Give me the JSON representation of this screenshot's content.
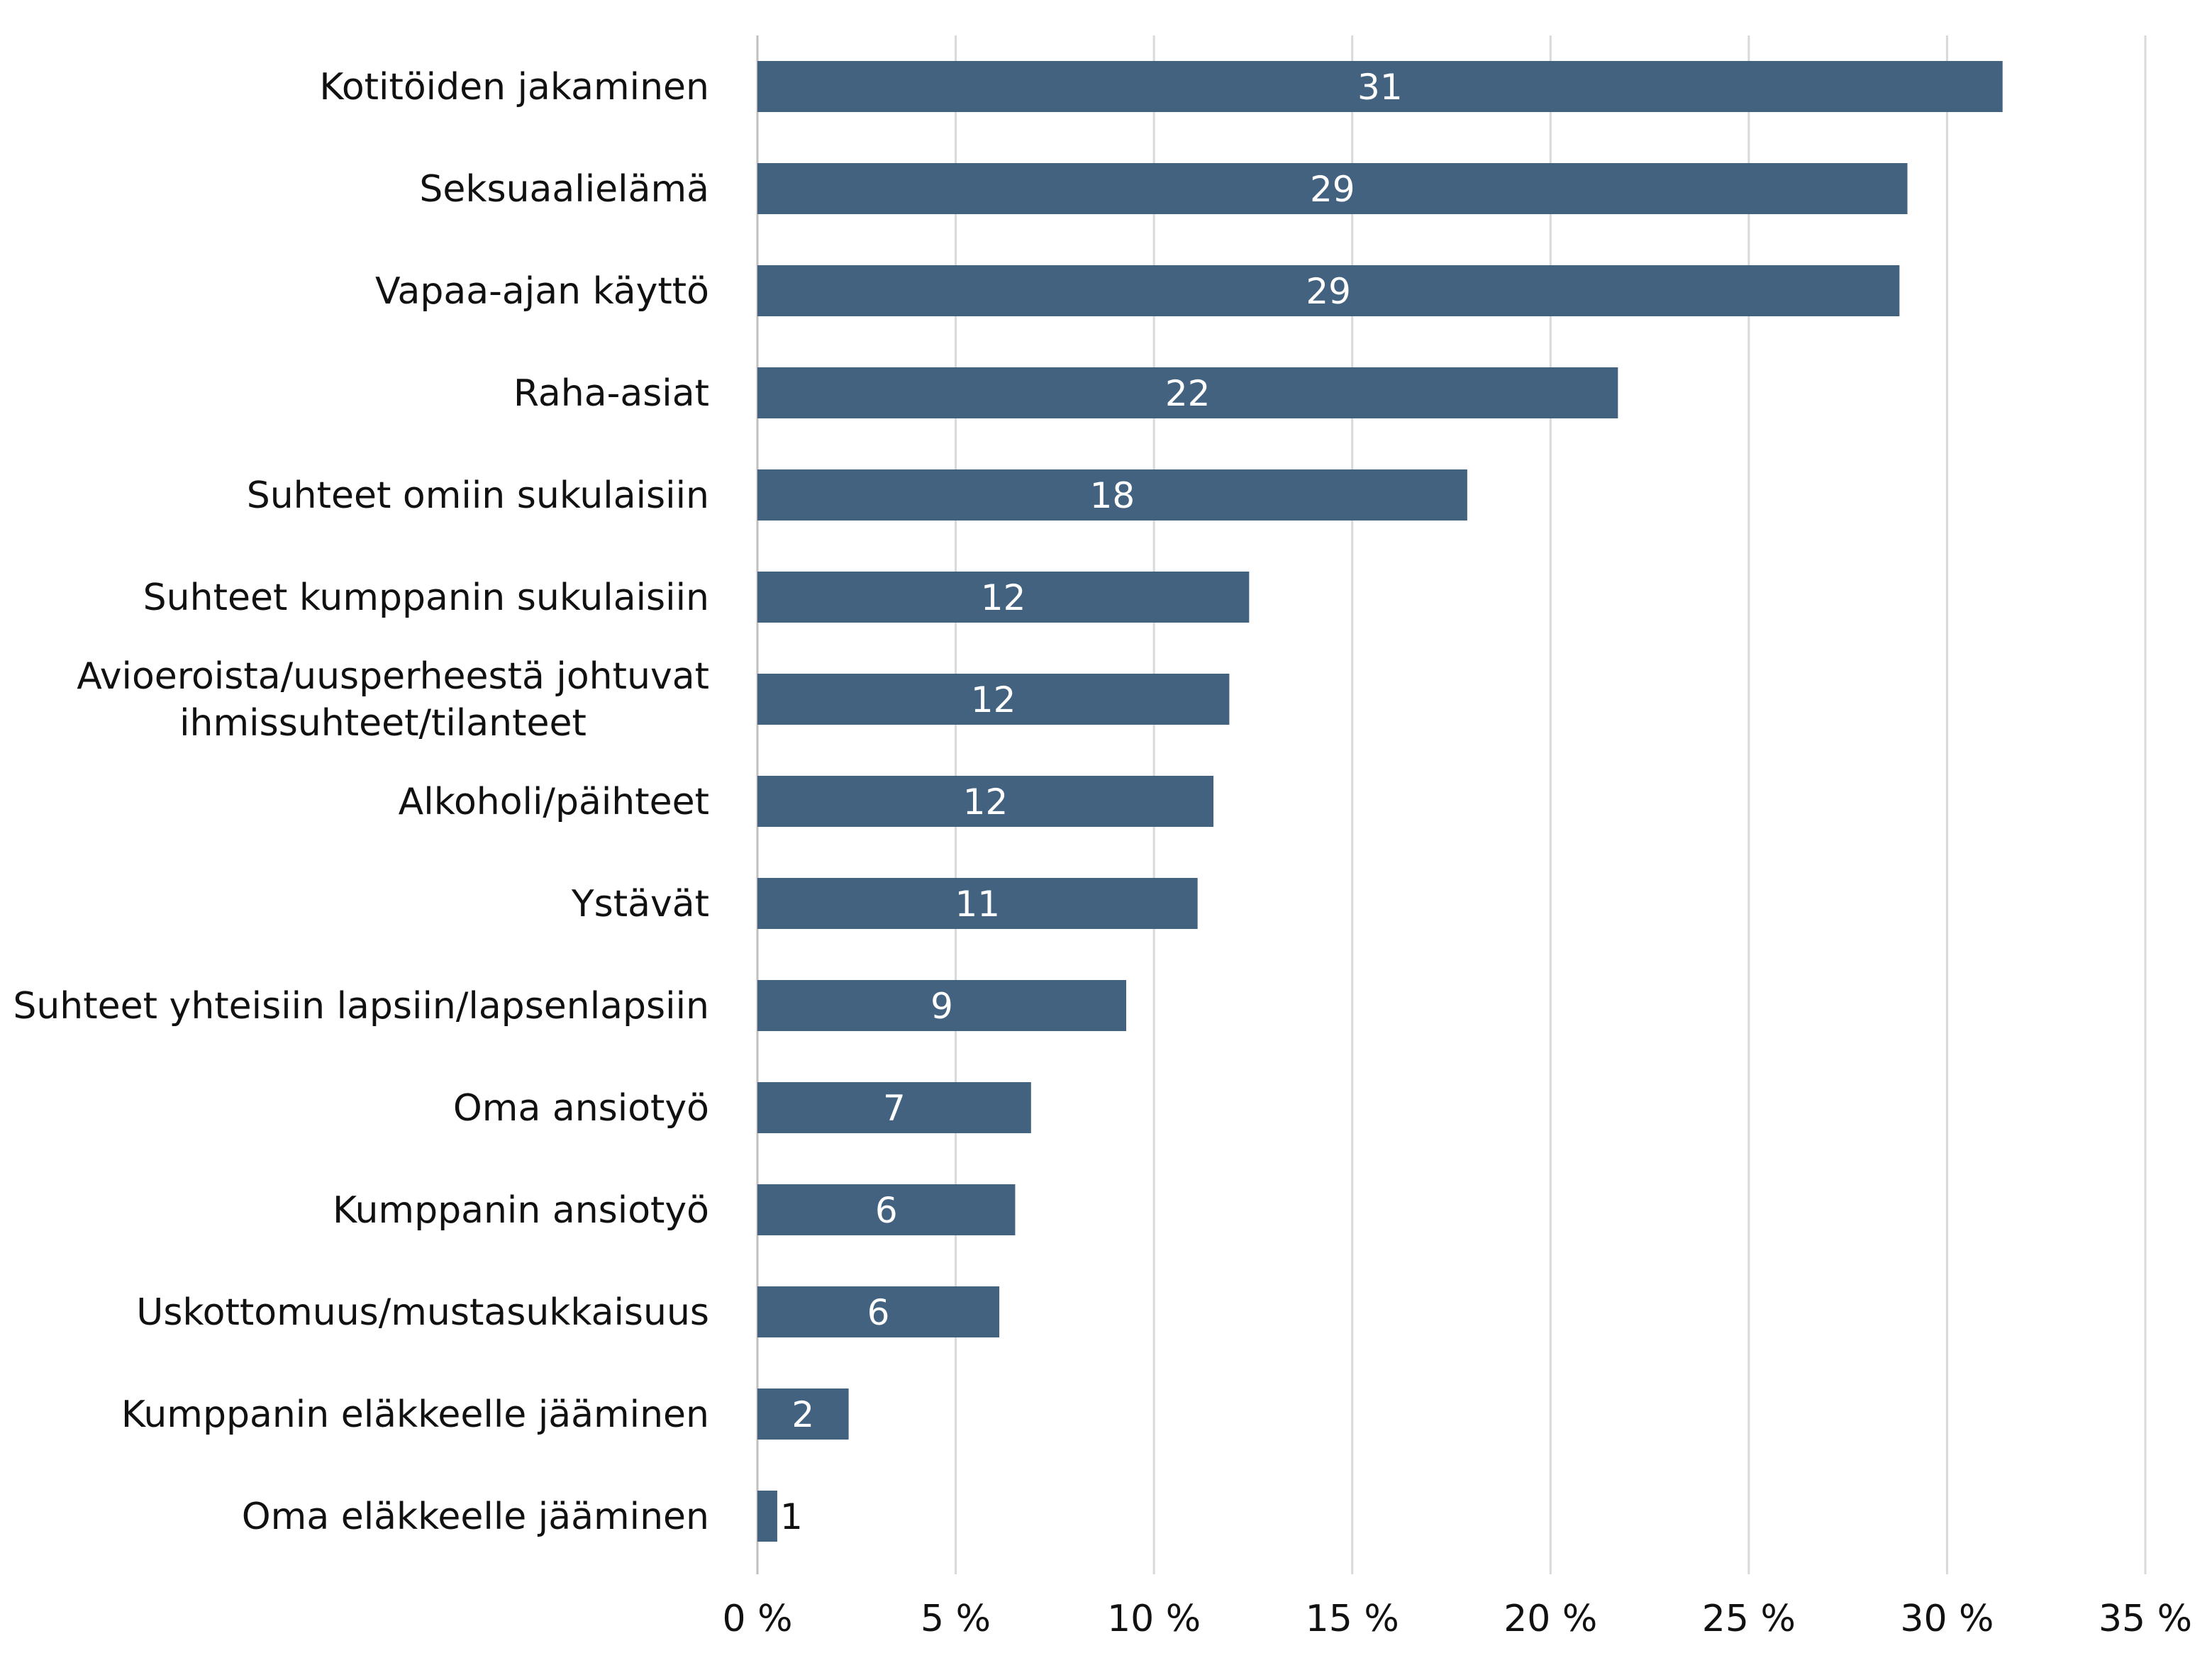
{
  "chart_data": {
    "type": "bar",
    "orientation": "horizontal",
    "categories": [
      [
        "Kotitöiden jakaminen"
      ],
      [
        "Seksuaalielämä"
      ],
      [
        "Vapaa-ajan käyttö"
      ],
      [
        "Raha-asiat"
      ],
      [
        "Suhteet omiin sukulaisiin"
      ],
      [
        "Suhteet kumppanin sukulaisiin"
      ],
      [
        "Avioeroista/uusperheestä johtuvat",
        "ihmissuhteet/tilanteet"
      ],
      [
        "Alkoholi/päihteet"
      ],
      [
        "Ystävät"
      ],
      [
        "Suhteet yhteisiin lapsiin/lapsenlapsiin"
      ],
      [
        "Oma ansiotyö"
      ],
      [
        "Kumppanin ansiotyö"
      ],
      [
        "Uskottomuus/mustasukkaisuus"
      ],
      [
        "Kumppanin eläkkeelle jääminen"
      ],
      [
        "Oma eläkkeelle jääminen"
      ]
    ],
    "values": [
      31.4,
      29.0,
      28.8,
      21.7,
      17.9,
      12.4,
      11.9,
      11.5,
      11.1,
      9.3,
      6.9,
      6.5,
      6.1,
      2.3,
      0.5
    ],
    "data_labels": [
      "31",
      "29",
      "29",
      "22",
      "18",
      "12",
      "12",
      "12",
      "11",
      "9",
      "7",
      "6",
      "6",
      "2",
      "1"
    ],
    "xlim": [
      0,
      35
    ],
    "x_ticks": [
      0,
      5,
      10,
      15,
      20,
      25,
      30,
      35
    ],
    "x_tick_labels": [
      "0 %",
      "5 %",
      "10 %",
      "15 %",
      "20 %",
      "25 %",
      "30 %",
      "35 %"
    ],
    "title": "",
    "xlabel": "",
    "ylabel": "",
    "grid": true,
    "legend": "none",
    "colors": {
      "bar": "#42627f",
      "grid": "#d9d9d9",
      "text": "#111111",
      "label_inside": "#ffffff"
    }
  }
}
